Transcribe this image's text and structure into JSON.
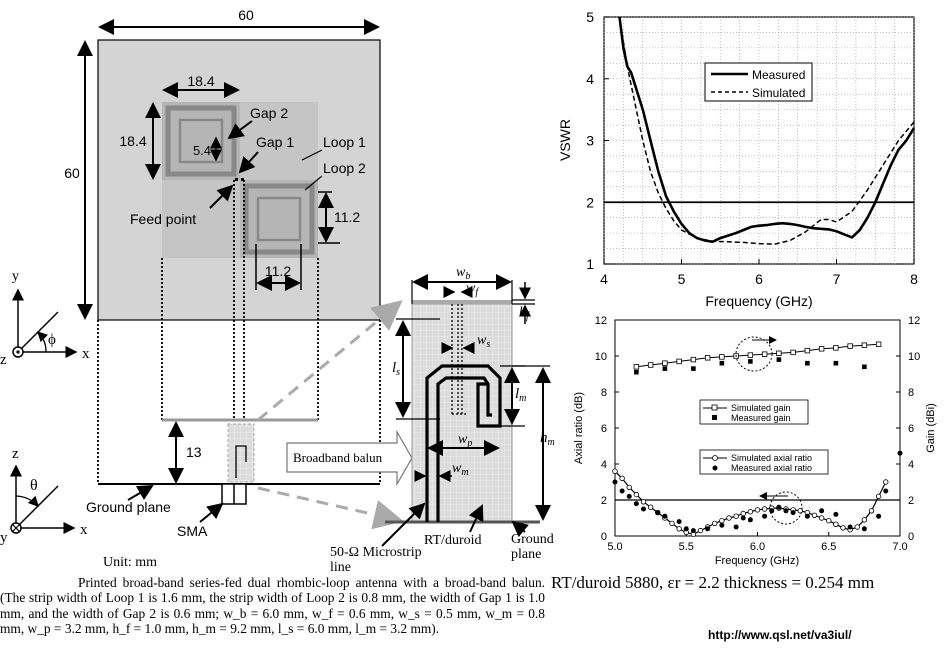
{
  "antenna": {
    "dim_width": "60",
    "dim_height": "60",
    "dim_loop_w": "18.4",
    "dim_loop_h": "18.4",
    "dim_inner": "5.4",
    "dim_loop2_h": "11.2",
    "dim_loop2_w": "11.2",
    "dim_gap_height": "13",
    "label_gap2": "Gap 2",
    "label_gap1": "Gap 1",
    "label_loop1": "Loop 1",
    "label_loop2": "Loop 2",
    "label_feed": "Feed point",
    "label_ground": "Ground plane",
    "label_sma": "SMA",
    "label_unit": "Unit: mm",
    "label_balun": "Broadband balun",
    "axis_y": "y",
    "axis_x": "x",
    "axis_z": "z",
    "axis_phi": "ϕ",
    "axis_theta": "θ"
  },
  "balun": {
    "label_wb": "w",
    "sub_wb": "b",
    "label_wf": "w",
    "sub_wf": "f",
    "label_hf": "h",
    "sub_hf": "f",
    "label_ws": "w",
    "sub_ws": "s",
    "label_ls": "l",
    "sub_ls": "s",
    "label_lm": "l",
    "sub_lm": "m",
    "label_hm": "h",
    "sub_hm": "m",
    "label_wp": "w",
    "sub_wp": "p",
    "label_wm": "w",
    "sub_wm": "m",
    "label_microstrip_1": "50-Ω Microstrip",
    "label_microstrip_2": "line",
    "label_rt": "RT/duroid",
    "label_ground_1": "Ground",
    "label_ground_2": "plane"
  },
  "caption": "Printed broad-band series-fed dual rhombic-loop antenna with a broad-band balun. (The strip width of Loop 1 is 1.6 mm, the strip width of Loop 2 is 0.8 mm, the width of Gap 1 is 1.0 mm, and the width of Gap 2 is 0.6 mm; w_b = 6.0 mm, w_f = 0.6 mm, w_s = 0.5 mm, w_m = 0.8 mm, w_p = 3.2 mm, h_f = 1.0 mm, h_m = 9.2 mm, l_s = 6.0 mm, l_m = 3.2 mm).",
  "substrate_note": "RT/duroid 5880, εr = 2.2 thickness = 0.254 mm",
  "url": "http://www.qsl.net/va3iul/",
  "chart_data": [
    {
      "type": "line",
      "xlabel": "Frequency (GHz)",
      "ylabel": "VSWR",
      "xlim": [
        4,
        8
      ],
      "ylim": [
        1,
        5
      ],
      "xticks": [
        "4",
        "5",
        "6",
        "7",
        "8"
      ],
      "yticks": [
        "1",
        "2",
        "3",
        "4",
        "5"
      ],
      "grid": true,
      "legend_position": "top-right",
      "reference_line": 2,
      "series": [
        {
          "name": "Measured",
          "style": "solid",
          "x": [
            4.2,
            4.25,
            4.3,
            4.35,
            4.4,
            4.5,
            4.6,
            4.7,
            4.8,
            4.9,
            5.0,
            5.1,
            5.2,
            5.3,
            5.4,
            5.5,
            5.6,
            5.7,
            5.8,
            5.9,
            6.0,
            6.1,
            6.2,
            6.3,
            6.4,
            6.5,
            6.6,
            6.7,
            6.8,
            6.9,
            7.0,
            7.1,
            7.2,
            7.3,
            7.4,
            7.5,
            7.6,
            7.7,
            7.8,
            7.9,
            8.0
          ],
          "y": [
            5.0,
            4.5,
            4.2,
            4.1,
            3.9,
            3.5,
            3.0,
            2.5,
            2.1,
            1.85,
            1.65,
            1.5,
            1.42,
            1.38,
            1.36,
            1.42,
            1.46,
            1.5,
            1.55,
            1.6,
            1.62,
            1.63,
            1.65,
            1.66,
            1.65,
            1.63,
            1.6,
            1.58,
            1.57,
            1.56,
            1.53,
            1.48,
            1.43,
            1.55,
            1.75,
            2.0,
            2.3,
            2.6,
            2.85,
            3.0,
            3.2
          ]
        },
        {
          "name": "Simulated",
          "style": "dashed",
          "x": [
            4.2,
            4.3,
            4.4,
            4.5,
            4.6,
            4.7,
            4.8,
            4.9,
            5.0,
            5.2,
            5.4,
            5.6,
            5.8,
            6.0,
            6.2,
            6.4,
            6.6,
            6.8,
            6.9,
            7.0,
            7.2,
            7.4,
            7.6,
            7.8,
            8.0
          ],
          "y": [
            5.0,
            4.2,
            3.6,
            3.0,
            2.5,
            2.15,
            1.9,
            1.7,
            1.55,
            1.42,
            1.37,
            1.36,
            1.35,
            1.33,
            1.32,
            1.38,
            1.52,
            1.72,
            1.72,
            1.68,
            1.85,
            2.2,
            2.6,
            3.0,
            3.3
          ]
        }
      ]
    },
    {
      "type": "line",
      "xlabel": "Frequency (GHz)",
      "ylabel": "Axial ratio (dB)",
      "ylabel_right": "Gain (dBi)",
      "xlim": [
        5.0,
        7.0
      ],
      "ylim": [
        0,
        12
      ],
      "ylim_right": [
        0,
        12
      ],
      "xticks": [
        "5.0",
        "5.5",
        "6.0",
        "6.5",
        "7.0"
      ],
      "yticks": [
        "0",
        "2",
        "4",
        "6",
        "8",
        "10",
        "12"
      ],
      "grid": false,
      "reference_line": 2,
      "legend_entries": [
        "Simulated gain",
        "Measured gain",
        "Simulated axial ratio",
        "Measured axial ratio"
      ],
      "series": [
        {
          "name": "Simulated gain",
          "axis": "right",
          "x": [
            5.15,
            5.25,
            5.35,
            5.45,
            5.55,
            5.65,
            5.75,
            5.85,
            5.95,
            6.05,
            6.15,
            6.25,
            6.35,
            6.45,
            6.55,
            6.65,
            6.75,
            6.85
          ],
          "y": [
            9.4,
            9.5,
            9.6,
            9.7,
            9.8,
            9.9,
            9.95,
            10.0,
            10.05,
            10.1,
            10.15,
            10.2,
            10.3,
            10.4,
            10.45,
            10.55,
            10.6,
            10.65
          ]
        },
        {
          "name": "Measured gain",
          "axis": "right",
          "x": [
            5.15,
            5.35,
            5.55,
            5.75,
            5.95,
            6.15,
            6.35,
            6.55,
            6.75
          ],
          "y": [
            9.1,
            9.3,
            9.3,
            9.6,
            9.7,
            9.8,
            9.6,
            9.6,
            9.4
          ]
        },
        {
          "name": "Simulated axial ratio",
          "axis": "left",
          "x": [
            5.0,
            5.05,
            5.1,
            5.15,
            5.2,
            5.25,
            5.3,
            5.35,
            5.4,
            5.45,
            5.5,
            5.55,
            5.6,
            5.65,
            5.7,
            5.75,
            5.8,
            5.85,
            5.9,
            5.95,
            6.0,
            6.05,
            6.1,
            6.15,
            6.2,
            6.25,
            6.3,
            6.35,
            6.4,
            6.45,
            6.5,
            6.55,
            6.6,
            6.65,
            6.7,
            6.75,
            6.8,
            6.85,
            6.9
          ],
          "y": [
            3.6,
            3.2,
            2.7,
            2.3,
            1.9,
            1.6,
            1.3,
            1.0,
            0.7,
            0.4,
            0.2,
            0.1,
            0.3,
            0.5,
            0.7,
            0.85,
            1.0,
            1.1,
            1.25,
            1.35,
            1.45,
            1.5,
            1.55,
            1.55,
            1.5,
            1.45,
            1.4,
            1.3,
            1.15,
            1.0,
            0.85,
            0.65,
            0.45,
            0.35,
            0.5,
            0.9,
            1.4,
            2.2,
            3.0
          ]
        },
        {
          "name": "Measured axial ratio",
          "axis": "left",
          "x": [
            5.0,
            5.05,
            5.1,
            5.15,
            5.2,
            5.3,
            5.35,
            5.45,
            5.5,
            5.55,
            5.65,
            5.75,
            5.85,
            5.9,
            5.95,
            6.05,
            6.1,
            6.15,
            6.2,
            6.25,
            6.35,
            6.45,
            6.55,
            6.65,
            6.75,
            6.85,
            6.9,
            7.0
          ],
          "y": [
            3.0,
            2.5,
            2.2,
            1.8,
            1.5,
            1.3,
            1.1,
            0.8,
            0.4,
            0.3,
            0.4,
            0.6,
            0.5,
            1.0,
            0.9,
            1.1,
            1.4,
            1.6,
            1.4,
            1.3,
            1.1,
            1.4,
            1.2,
            0.5,
            0.4,
            1.1,
            2.5,
            4.6
          ]
        }
      ]
    }
  ]
}
